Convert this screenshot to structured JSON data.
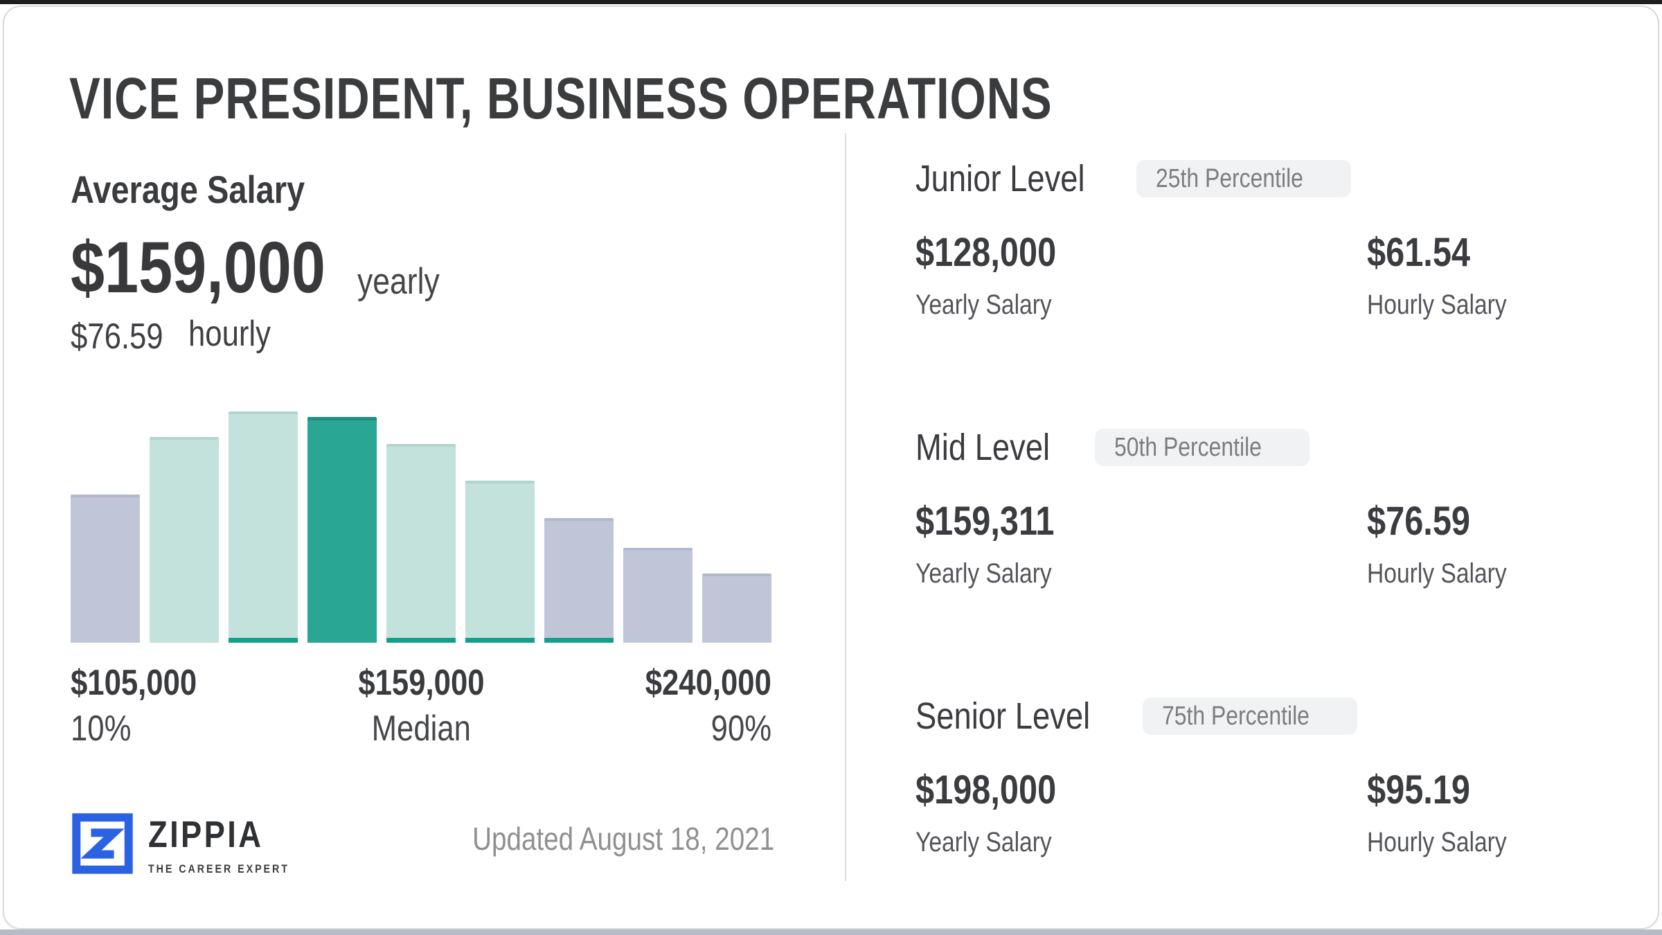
{
  "page": {
    "title": "VICE PRESIDENT, BUSINESS OPERATIONS",
    "updated_text": "Updated August 18, 2021"
  },
  "average_salary": {
    "label": "Average Salary",
    "yearly_value": "$159,000",
    "yearly_unit": "yearly",
    "hourly_value": "$76.59",
    "hourly_unit": "hourly"
  },
  "chart_data": {
    "type": "bar",
    "title": "Salary distribution histogram",
    "xlabel": "",
    "ylabel": "",
    "grid": false,
    "legend": false,
    "bars": [
      {
        "relative_height": 0.64,
        "color_role": "gray",
        "underline": false,
        "is_median": false
      },
      {
        "relative_height": 0.89,
        "color_role": "teal-light",
        "underline": false,
        "is_median": false
      },
      {
        "relative_height": 1.0,
        "color_role": "teal-light",
        "underline": true,
        "is_median": false
      },
      {
        "relative_height": 0.975,
        "color_role": "teal-dark",
        "underline": false,
        "is_median": true
      },
      {
        "relative_height": 0.86,
        "color_role": "teal-light",
        "underline": true,
        "is_median": false
      },
      {
        "relative_height": 0.7,
        "color_role": "teal-light",
        "underline": true,
        "is_median": false
      },
      {
        "relative_height": 0.54,
        "color_role": "gray",
        "underline": true,
        "is_median": false
      },
      {
        "relative_height": 0.41,
        "color_role": "gray",
        "underline": false,
        "is_median": false
      },
      {
        "relative_height": 0.3,
        "color_role": "gray",
        "underline": false,
        "is_median": false
      }
    ],
    "percentile_markers": [
      {
        "value": "$105,000",
        "label": "10%",
        "align": "left"
      },
      {
        "value": "$159,000",
        "label": "Median",
        "align": "center"
      },
      {
        "value": "$240,000",
        "label": "90%",
        "align": "right"
      }
    ],
    "salary_stats": {
      "p10": "$105,000",
      "median": "$159,000",
      "p90": "$240,000"
    }
  },
  "levels": [
    {
      "name": "Junior Level",
      "badge": "25th Percentile",
      "yearly_value": "$128,000",
      "yearly_label": "Yearly Salary",
      "hourly_value": "$61.54",
      "hourly_label": "Hourly Salary"
    },
    {
      "name": "Mid Level",
      "badge": "50th Percentile",
      "yearly_value": "$159,311",
      "yearly_label": "Yearly Salary",
      "hourly_value": "$76.59",
      "hourly_label": "Hourly Salary"
    },
    {
      "name": "Senior Level",
      "badge": "75th Percentile",
      "yearly_value": "$198,000",
      "yearly_label": "Yearly Salary",
      "hourly_value": "$95.19",
      "hourly_label": "Hourly Salary"
    }
  ],
  "logo": {
    "brand": "ZIPPIA",
    "tagline": "THE CAREER EXPERT",
    "icon": "zippia-z-icon"
  },
  "colors": {
    "bar_gray": "#c0c6d8",
    "bar_teal_light": "#c3e2dc",
    "bar_teal_dark": "#2aa695",
    "bar_underline": "#12a08b",
    "brand_blue": "#2b62e3",
    "text_dark": "#3a3b3e",
    "text_muted": "#8f9092",
    "badge_bg": "#f1f2f3",
    "badge_text": "#7c7d81",
    "divider": "#dcdddf"
  }
}
